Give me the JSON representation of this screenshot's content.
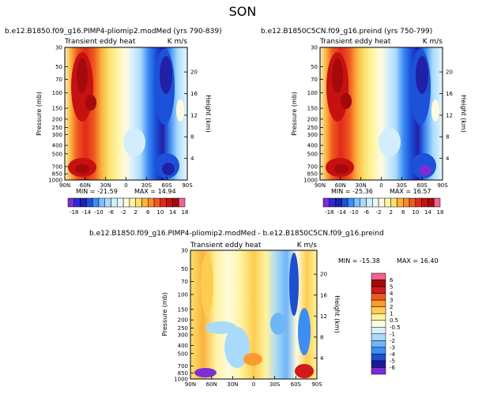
{
  "season": "SON",
  "panels": [
    {
      "title": "b.e12.B1850.f09_g16.PIMP4-pliomip2.modMed (yrs 790-839)",
      "subtitle_left": "Transient eddy heat",
      "subtitle_right": "K m/s",
      "min_text": "MIN = -21.59",
      "max_text": "MAX = 14.94"
    },
    {
      "title": "b.e12.B1850C5CN.f09_g16.preind (yrs 750-799)",
      "subtitle_left": "Transient eddy heat",
      "subtitle_right": "K m/s",
      "min_text": "MIN = -25.36",
      "max_text": "MAX = 16.57"
    },
    {
      "title": "b.e12.B1850.f09_g16.PIMP4-pliomip2.modMed - b.e12.B1850C5CN.f09_g16.preind",
      "subtitle_left": "Transient eddy heat",
      "subtitle_right": "K m/s",
      "min_text": "MIN = -15.38",
      "max_text": "MAX = 16.40"
    }
  ],
  "axes": {
    "ylabel": "Pressure (mb)",
    "ylabel_right": "Height (km)",
    "pressure_ticks": [
      "30",
      "50",
      "70",
      "100",
      "150",
      "200",
      "250",
      "300",
      "400",
      "500",
      "700",
      "850",
      "1000"
    ],
    "height_ticks": [
      "20",
      "16",
      "12",
      "8",
      "4"
    ],
    "lat_ticks": [
      "90N",
      "60N",
      "30N",
      "0",
      "30S",
      "60S",
      "90S"
    ]
  },
  "colorbar_top": {
    "labels": [
      "-18",
      "-14",
      "-10",
      "-6",
      "-2",
      "2",
      "6",
      "10",
      "14",
      "18"
    ],
    "colors": [
      "#7a2ed6",
      "#2b2bd6",
      "#2020a8",
      "#1b52d9",
      "#3d8df5",
      "#7fc0f7",
      "#a9dafa",
      "#d2eefc",
      "#e9f7fd",
      "#fdfbe0",
      "#fff5a5",
      "#fde06e",
      "#fbb23e",
      "#f88a2a",
      "#ef5a1e",
      "#e02a1a",
      "#c71010",
      "#a40a0a",
      "#f06292"
    ]
  },
  "colorbar_diff": {
    "labels": [
      "6",
      "5",
      "4",
      "3",
      "2",
      "1",
      "0.5",
      "-0.5",
      "-1",
      "-2",
      "-3",
      "-4",
      "-5",
      "-6"
    ],
    "colors": [
      "#f06292",
      "#a40a0a",
      "#d11a1a",
      "#ee5a1e",
      "#fb9a30",
      "#fdcd50",
      "#fff3a0",
      "#fdfbe0",
      "#d8f0fc",
      "#a9dafa",
      "#6fb6f5",
      "#3d8df5",
      "#1d4fd0",
      "#1a1a9a",
      "#7a2ed6"
    ]
  }
}
